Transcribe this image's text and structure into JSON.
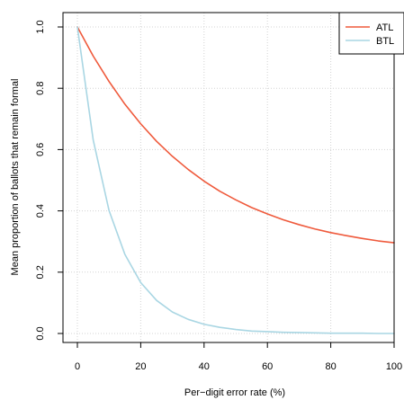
{
  "chart_data": {
    "type": "line",
    "title": "",
    "xlabel": "Per−digit error rate (%)",
    "ylabel": "Mean proportion of ballots that remain formal",
    "xlim": [
      0,
      100
    ],
    "ylim": [
      0,
      1
    ],
    "x_ticks": [
      0,
      20,
      40,
      60,
      80,
      100
    ],
    "x_tick_labels": [
      "0",
      "20",
      "40",
      "60",
      "80",
      "100"
    ],
    "y_ticks": [
      0,
      0.2,
      0.4,
      0.6,
      0.8,
      1
    ],
    "y_tick_labels": [
      "0.0",
      "0.2",
      "0.4",
      "0.6",
      "0.8",
      "1.0"
    ],
    "grid": true,
    "legend_position": "top-right",
    "x": [
      0,
      5,
      10,
      15,
      20,
      25,
      30,
      35,
      40,
      45,
      50,
      55,
      60,
      65,
      70,
      75,
      80,
      85,
      90,
      95,
      100
    ],
    "series": [
      {
        "name": "ATL",
        "color": "#ef5a3c",
        "values": [
          1.0,
          0.905,
          0.822,
          0.748,
          0.684,
          0.627,
          0.578,
          0.535,
          0.497,
          0.464,
          0.436,
          0.411,
          0.39,
          0.371,
          0.355,
          0.341,
          0.329,
          0.319,
          0.31,
          0.302,
          0.296
        ]
      },
      {
        "name": "BTL",
        "color": "#a9d6e3",
        "values": [
          1.0,
          0.631,
          0.401,
          0.258,
          0.166,
          0.108,
          0.07,
          0.046,
          0.03,
          0.02,
          0.013,
          0.008,
          0.006,
          0.004,
          0.003,
          0.002,
          0.001,
          0.001,
          0.001,
          0.0,
          0.0
        ]
      }
    ]
  }
}
